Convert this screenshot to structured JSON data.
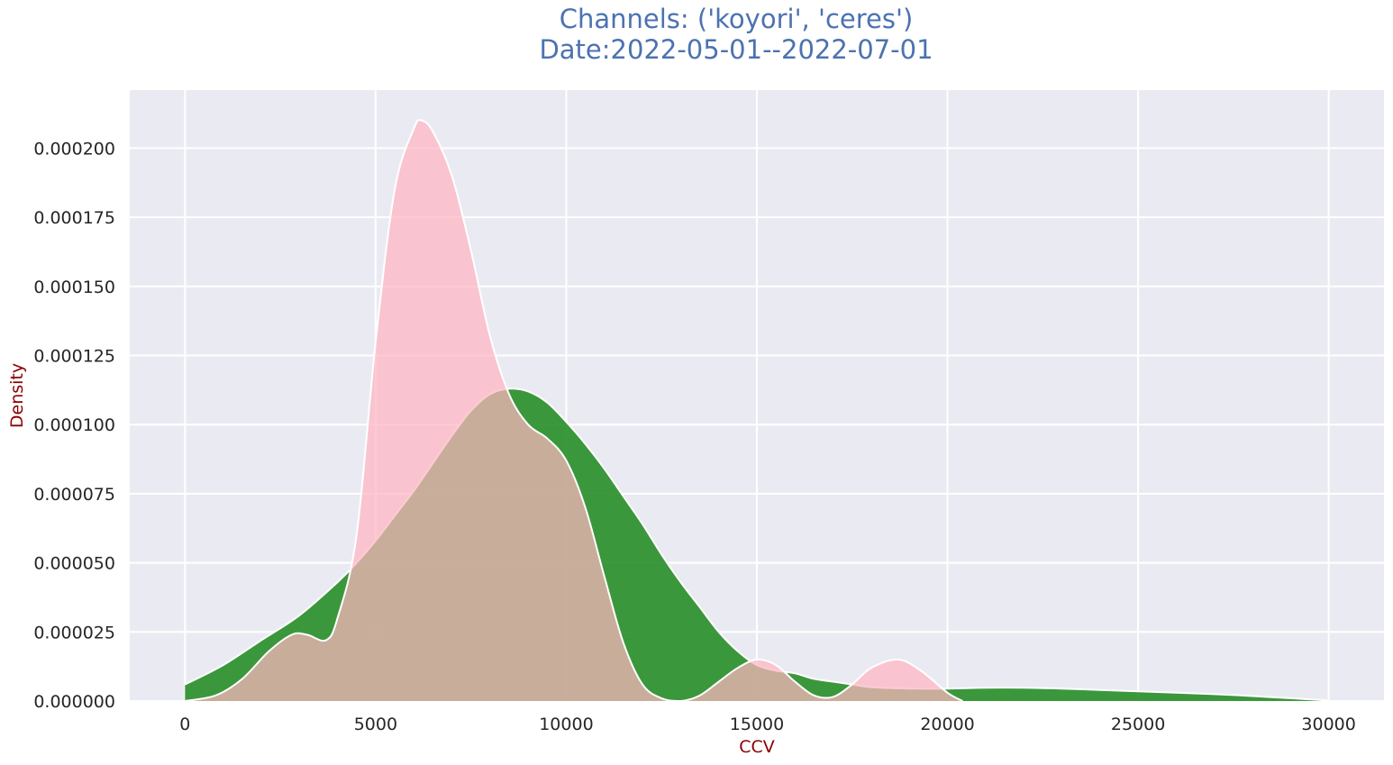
{
  "chart_data": {
    "type": "area",
    "title_line1": "Channels: ('koyori', 'ceres')",
    "title_line2": "Date:2022-05-01--2022-07-01",
    "xlabel": "CCV",
    "ylabel": "Density",
    "xlim": [
      -1450,
      31450
    ],
    "ylim": [
      0,
      0.000221
    ],
    "x_ticks": [
      0,
      5000,
      10000,
      15000,
      20000,
      25000,
      30000
    ],
    "x_tick_labels": [
      "0",
      "5000",
      "10000",
      "15000",
      "20000",
      "25000",
      "30000"
    ],
    "y_ticks": [
      0,
      2.5e-05,
      5e-05,
      7.5e-05,
      0.0001,
      0.000125,
      0.00015,
      0.000175,
      0.0002
    ],
    "y_tick_labels": [
      "0.000000",
      "0.000025",
      "0.000050",
      "0.000075",
      "0.000100",
      "0.000125",
      "0.000150",
      "0.000175",
      "0.000200"
    ],
    "grid": true,
    "background_color": "#eaeaf2",
    "series": [
      {
        "color": "#228b22",
        "x": [
          0,
          1000,
          2000,
          3000,
          4000,
          4500,
          5000,
          5500,
          6000,
          6500,
          7000,
          7500,
          8000,
          8500,
          9000,
          9500,
          10000,
          10500,
          11000,
          11500,
          12000,
          12500,
          13000,
          13500,
          14000,
          14500,
          15000,
          15500,
          16000,
          16500,
          17000,
          17500,
          18000,
          19000,
          20000,
          21000,
          22000,
          23000,
          24000,
          25000,
          26000,
          27000,
          28000,
          29000,
          30000
        ],
        "y": [
          6e-06,
          1.3e-05,
          2.2e-05,
          3.1e-05,
          4.3e-05,
          5e-05,
          5.8e-05,
          6.7e-05,
          7.6e-05,
          8.6e-05,
          9.6e-05,
          0.000105,
          0.000111,
          0.000113,
          0.000112,
          0.000108,
          0.000101,
          9.3e-05,
          8.4e-05,
          7.4e-05,
          6.4e-05,
          5.3e-05,
          4.3e-05,
          3.4e-05,
          2.5e-05,
          1.8e-05,
          1.3e-05,
          1.1e-05,
          1e-05,
          8e-06,
          7e-06,
          6e-06,
          5e-06,
          4.5e-06,
          4.5e-06,
          4.8e-06,
          4.8e-06,
          4.5e-06,
          4e-06,
          3.5e-06,
          3e-06,
          2.5e-06,
          1.8e-06,
          1e-06,
          2e-07
        ]
      },
      {
        "color": "#ffb6c1",
        "x": [
          0,
          800,
          1500,
          2200,
          2800,
          3200,
          3700,
          4000,
          4500,
          5000,
          5500,
          6000,
          6200,
          6500,
          7000,
          7500,
          8000,
          8500,
          9000,
          9500,
          10000,
          10500,
          11000,
          11500,
          12000,
          12500,
          13000,
          13500,
          14000,
          14500,
          15000,
          15500,
          16000,
          16500,
          17000,
          17500,
          18000,
          18700,
          19300,
          20000,
          20400
        ],
        "y": [
          0,
          2e-06,
          8e-06,
          1.8e-05,
          2.4e-05,
          2.4e-05,
          2.2e-05,
          3e-05,
          6e-05,
          0.00013,
          0.000185,
          0.000207,
          0.00021,
          0.000206,
          0.00019,
          0.000163,
          0.000132,
          0.000111,
          0.0001,
          9.5e-05,
          8.7e-05,
          7e-05,
          4.5e-05,
          2.1e-05,
          6e-06,
          1e-06,
          0,
          2e-06,
          7e-06,
          1.2e-05,
          1.5e-05,
          1.3e-05,
          7e-06,
          2e-06,
          1.5e-06,
          6e-06,
          1.2e-05,
          1.5e-05,
          1.1e-05,
          3e-06,
          0
        ]
      }
    ]
  }
}
